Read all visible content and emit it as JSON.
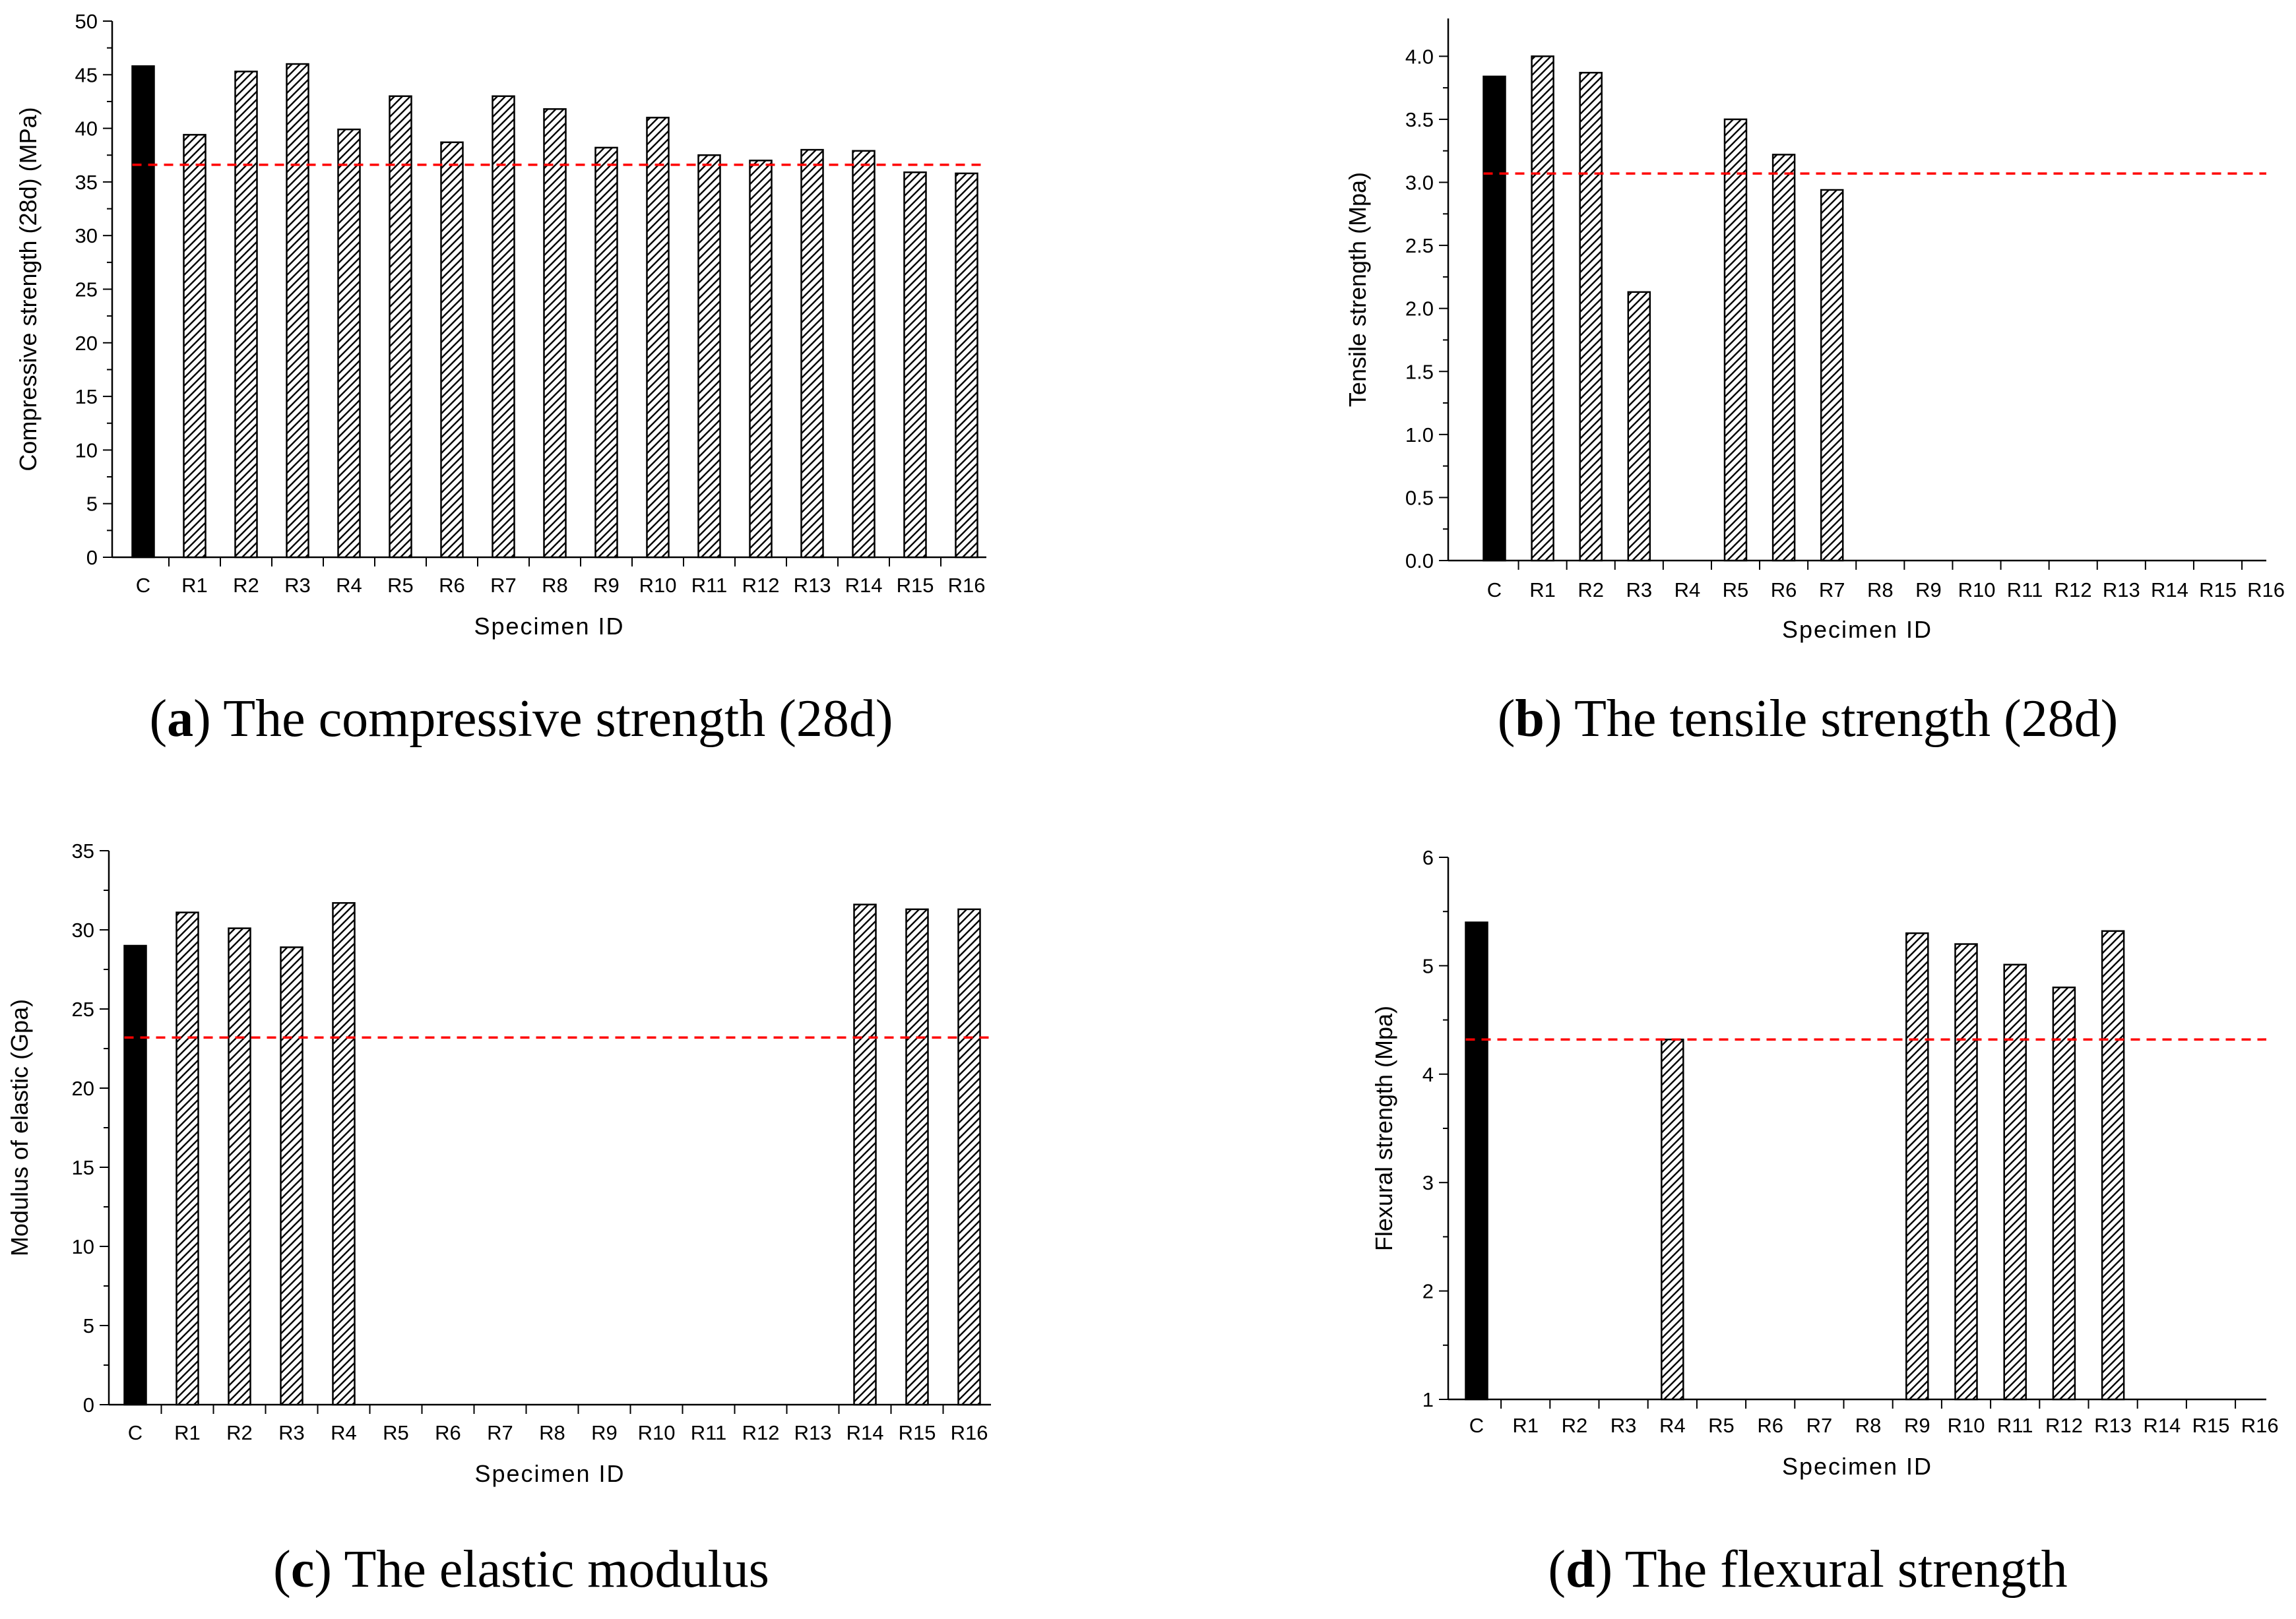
{
  "colors": {
    "bar_dark": "#000000",
    "bar_hatch_fill": "#ffffff",
    "hatch_line": "#000000",
    "ref_line": "#ff0000"
  },
  "chart_data": [
    {
      "type": "bar",
      "letter": "a",
      "caption": "The compressive strength (28d)",
      "xlabel": "Specimen ID",
      "ylabel": "Compressive strength (28d) (MPa)",
      "categories": [
        "C",
        "R1",
        "R2",
        "R3",
        "R4",
        "R5",
        "R6",
        "R7",
        "R8",
        "R9",
        "R10",
        "R11",
        "R12",
        "R13",
        "R14",
        "R15",
        "R16"
      ],
      "values": [
        45.8,
        39.4,
        45.3,
        46.0,
        39.9,
        43.0,
        38.7,
        43.0,
        41.8,
        38.2,
        41.0,
        37.5,
        37.0,
        38.0,
        37.9,
        35.9,
        35.8
      ],
      "ylim": [
        0,
        50
      ],
      "yticks": [
        0,
        5,
        10,
        15,
        20,
        25,
        30,
        35,
        40,
        45,
        50
      ],
      "ytick_labels": [
        "0",
        "5",
        "10",
        "15",
        "20",
        "25",
        "30",
        "35",
        "40",
        "45",
        "50"
      ],
      "reference_line": 36.6
    },
    {
      "type": "bar",
      "letter": "b",
      "caption": "The tensile strength (28d)",
      "xlabel": "Specimen ID",
      "ylabel": "Tensile strength (Mpa)",
      "categories": [
        "C",
        "R1",
        "R2",
        "R3",
        "R4",
        "R5",
        "R6",
        "R7",
        "R8",
        "R9",
        "R10",
        "R11",
        "R12",
        "R13",
        "R14",
        "R15",
        "R16"
      ],
      "values": [
        3.84,
        4.0,
        3.87,
        2.13,
        null,
        3.5,
        3.22,
        2.94,
        null,
        null,
        null,
        null,
        null,
        null,
        null,
        null,
        null
      ],
      "ylim": [
        0,
        4.3
      ],
      "yticks": [
        0,
        0.5,
        1.0,
        1.5,
        2.0,
        2.5,
        3.0,
        3.5,
        4.0
      ],
      "ytick_labels": [
        "0.0",
        "0.5",
        "1.0",
        "1.5",
        "2.0",
        "2.5",
        "3.0",
        "3.5",
        "4.0"
      ],
      "reference_line": 3.07
    },
    {
      "type": "bar",
      "letter": "c",
      "caption": "The elastic modulus",
      "xlabel": "Specimen ID",
      "ylabel": "Modulus of elastic (Gpa)",
      "categories": [
        "C",
        "R1",
        "R2",
        "R3",
        "R4",
        "R5",
        "R6",
        "R7",
        "R8",
        "R9",
        "R10",
        "R11",
        "R12",
        "R13",
        "R14",
        "R15",
        "R16"
      ],
      "values": [
        29.0,
        31.1,
        30.1,
        28.9,
        31.7,
        null,
        null,
        null,
        null,
        null,
        null,
        null,
        null,
        null,
        31.6,
        31.3,
        31.3
      ],
      "ylim": [
        0,
        35
      ],
      "yticks": [
        0,
        5,
        10,
        15,
        20,
        25,
        30,
        35
      ],
      "ytick_labels": [
        "0",
        "5",
        "10",
        "15",
        "20",
        "25",
        "30",
        "35"
      ],
      "reference_line": 23.2
    },
    {
      "type": "bar",
      "letter": "d",
      "caption": "The flexural strength",
      "xlabel": "Specimen ID",
      "ylabel": "Flexural strength (Mpa)",
      "categories": [
        "C",
        "R1",
        "R2",
        "R3",
        "R4",
        "R5",
        "R6",
        "R7",
        "R8",
        "R9",
        "R10",
        "R11",
        "R12",
        "R13",
        "R14",
        "R15",
        "R16"
      ],
      "values": [
        5.4,
        null,
        null,
        null,
        4.32,
        null,
        null,
        null,
        null,
        5.3,
        5.2,
        5.01,
        4.8,
        5.32,
        null,
        null,
        null
      ],
      "ylim": [
        1,
        6
      ],
      "yticks": [
        1,
        2,
        3,
        4,
        5,
        6
      ],
      "ytick_labels": [
        "1",
        "2",
        "3",
        "4",
        "5",
        "6"
      ],
      "reference_line": 4.32
    }
  ]
}
